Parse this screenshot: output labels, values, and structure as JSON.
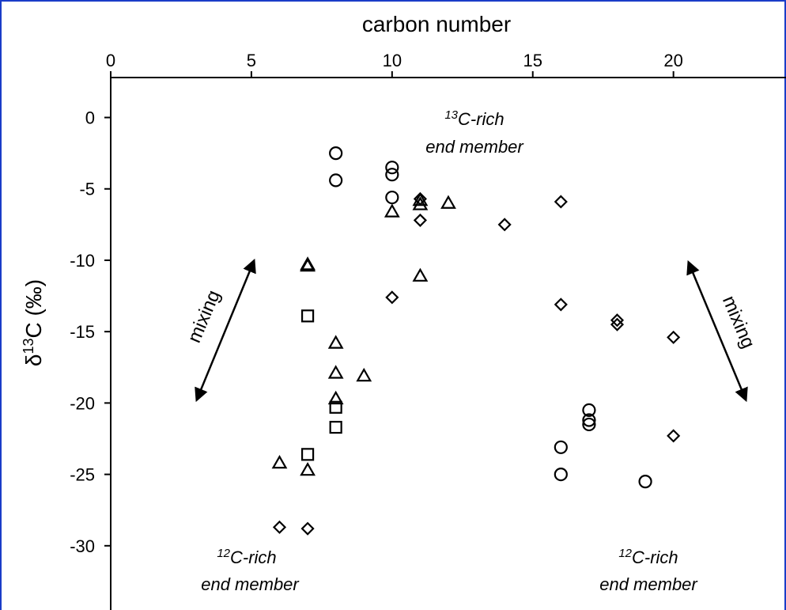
{
  "chart_data": {
    "type": "scatter",
    "xlabel": "carbon number",
    "ylabel_prefix": "δ",
    "ylabel_sup": "13",
    "ylabel_suffix": "C (‰)",
    "x_axis_position": "top",
    "xlim": [
      0,
      24
    ],
    "ylim": [
      -34.5,
      2.8
    ],
    "x_ticks": [
      0,
      5,
      10,
      15,
      20
    ],
    "y_ticks": [
      0,
      -5,
      -10,
      -15,
      -20,
      -25,
      -30
    ],
    "grid": false,
    "series": [
      {
        "marker": "circle",
        "points": [
          [
            8,
            -2.5
          ],
          [
            8,
            -4.4
          ],
          [
            10,
            -3.5
          ],
          [
            10,
            -4.0
          ],
          [
            10,
            -5.6
          ],
          [
            16,
            -23.1
          ],
          [
            16,
            -25.0
          ],
          [
            17,
            -20.5
          ],
          [
            17,
            -21.2
          ],
          [
            17,
            -21.5
          ],
          [
            19,
            -25.5
          ]
        ]
      },
      {
        "marker": "triangle",
        "points": [
          [
            7,
            -10.3
          ],
          [
            7,
            -10.4
          ],
          [
            6,
            -24.2
          ],
          [
            7,
            -24.7
          ],
          [
            8,
            -15.8
          ],
          [
            8,
            -17.9
          ],
          [
            8,
            -19.7
          ],
          [
            9,
            -18.1
          ],
          [
            10,
            -6.6
          ],
          [
            11,
            -5.8
          ],
          [
            11,
            -6.1
          ],
          [
            11,
            -11.1
          ],
          [
            12,
            -6.0
          ]
        ]
      },
      {
        "marker": "square",
        "points": [
          [
            7,
            -13.9
          ],
          [
            7,
            -23.6
          ],
          [
            8,
            -20.3
          ],
          [
            8,
            -21.7
          ]
        ]
      },
      {
        "marker": "diamond",
        "points": [
          [
            6,
            -28.7
          ],
          [
            7,
            -28.8
          ],
          [
            10,
            -12.6
          ],
          [
            11,
            -5.7
          ],
          [
            11,
            -7.2
          ],
          [
            14,
            -7.5
          ],
          [
            16,
            -5.9
          ],
          [
            16,
            -13.1
          ],
          [
            18,
            -14.2
          ],
          [
            18,
            -14.5
          ],
          [
            20,
            -15.4
          ],
          [
            20,
            -22.3
          ]
        ]
      }
    ],
    "annotations": {
      "top_center": {
        "sup": "13",
        "line1": "C-rich",
        "line2": "end member"
      },
      "bottom_left": {
        "sup": "12",
        "line1": "C-rich",
        "line2": "end member"
      },
      "bottom_right": {
        "sup": "12",
        "line1": "C-rich",
        "line2": "end member"
      },
      "mixing_left": "mixing",
      "mixing_right": "mixing"
    }
  }
}
